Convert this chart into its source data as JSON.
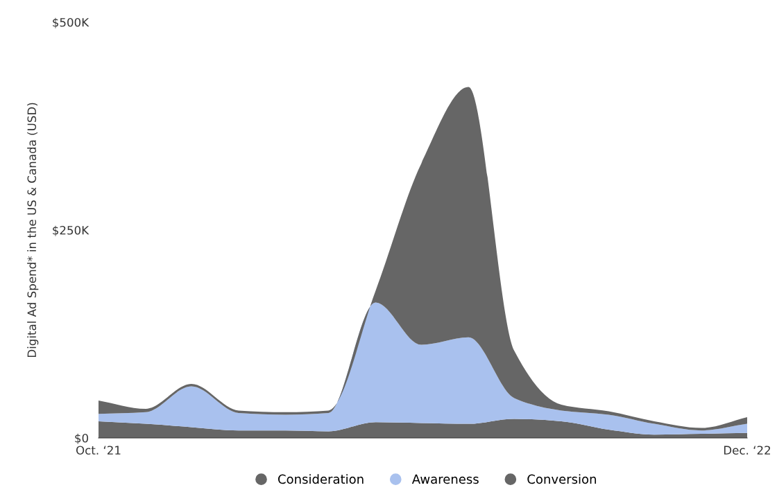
{
  "chart_data": {
    "type": "area",
    "stacked": true,
    "ylabel": "Digital Ad Spend* in the US & Canada (USD)",
    "x": [
      "2021-10",
      "2021-11",
      "2021-12",
      "2022-01",
      "2022-02",
      "2022-03",
      "2022-04",
      "2022-05",
      "2022-06",
      "2022-07",
      "2022-08",
      "2022-09",
      "2022-10",
      "2022-11",
      "2022-12"
    ],
    "xlim": [
      "2021-10",
      "2022-12"
    ],
    "xticks": [
      {
        "value": "2021-10",
        "label": "Oct. ‘21"
      },
      {
        "value": "2022-12",
        "label": "Dec. ‘22"
      }
    ],
    "series": [
      {
        "name": "Consideration",
        "color": "#666666",
        "values": [
          20,
          17,
          13,
          9,
          9,
          8,
          19,
          18,
          17,
          23,
          20,
          10,
          4,
          5,
          6
        ]
      },
      {
        "name": "Awareness",
        "color": "#a9c1ee",
        "values": [
          9,
          14,
          49,
          21,
          19,
          22,
          144,
          94,
          104,
          25,
          13,
          18,
          13,
          4,
          11
        ]
      },
      {
        "name": "Conversion",
        "color": "#666666",
        "values": [
          16,
          4,
          3,
          3,
          3,
          3,
          14,
          218,
          301,
          57,
          7,
          4,
          3,
          3,
          8
        ]
      }
    ],
    "ylim": [
      0,
      500
    ],
    "yticks": [
      {
        "value": 0,
        "label": "$0"
      },
      {
        "value": 250,
        "label": "$250K"
      },
      {
        "value": 500,
        "label": "$500K"
      }
    ],
    "grid": false,
    "legend": "bottom"
  }
}
